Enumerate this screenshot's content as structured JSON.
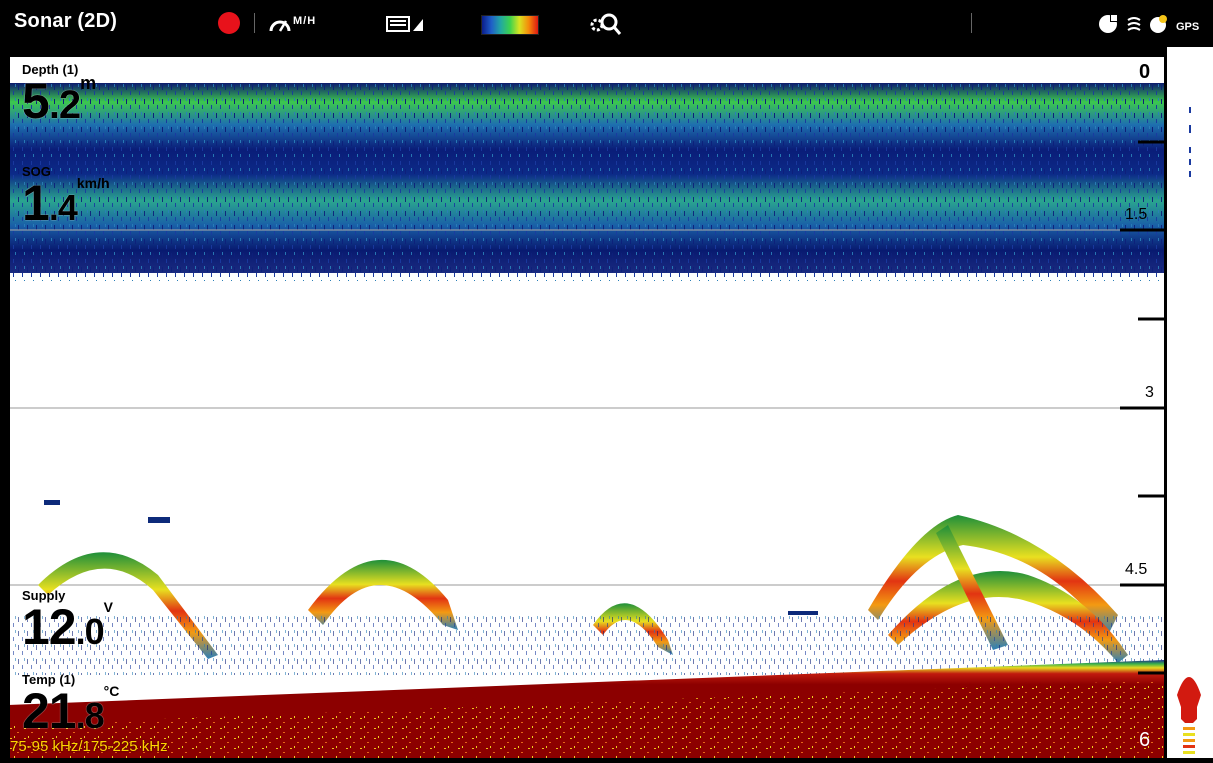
{
  "header": {
    "title": "Sonar (2D)",
    "speed_unit": "M/H",
    "record_icon": "record-icon",
    "speed_icon": "speedometer-icon",
    "keyboard_icon": "keyboard-signal-icon",
    "palette_icon": "color-palette-icon",
    "zoom_icon": "zoom-settings-icon",
    "status_icons": [
      "network-icon",
      "sonar-status-icon",
      "alert-icon",
      "gps-icon"
    ],
    "gps_label": "GPS"
  },
  "readouts": {
    "depth": {
      "label": "Depth (1)",
      "value_int": "5",
      "value_dec": ".2",
      "unit": "m"
    },
    "sog": {
      "label": "SOG",
      "value_int": "1",
      "value_dec": ".4",
      "unit": "km/h"
    },
    "supply": {
      "label": "Supply",
      "value_int": "12",
      "value_dec": ".0",
      "unit": "V"
    },
    "temp": {
      "label": "Temp (1)",
      "value_int": "21",
      "value_dec": ".8",
      "unit": "°C"
    }
  },
  "depth_scale": {
    "labels": [
      "0",
      "1.5",
      "3",
      "4.5",
      "6"
    ]
  },
  "frequency": "75-95 kHz/175-225 kHz",
  "colors": {
    "background": "#000000",
    "sonar_background": "#ffffff",
    "bottom": "#8c0000",
    "record": "#e8121b",
    "frequency_text": "#ffd400"
  }
}
